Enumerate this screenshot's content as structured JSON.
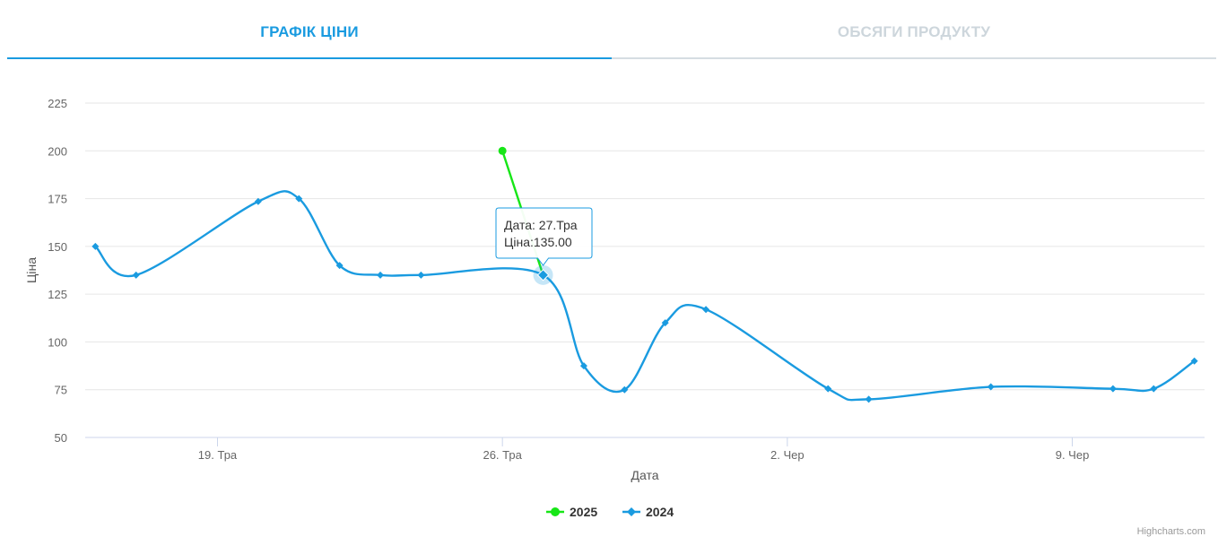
{
  "tabs": {
    "price_chart": "ГРАФІК ЦІНИ",
    "product_volumes": "ОБСЯГИ ПРОДУКТУ"
  },
  "colors": {
    "accent": "#1a9be0",
    "series_2025": "#17e617",
    "series_2024": "#1a9be0",
    "tab_inactive": "#cdd6dc"
  },
  "chart_data": {
    "type": "line",
    "xlabel": "Дата",
    "ylabel": "Ціна",
    "ylim": [
      50,
      225
    ],
    "yticks": [
      "50",
      "75",
      "100",
      "125",
      "150",
      "175",
      "200",
      "225"
    ],
    "xticks": [
      "19. Тра",
      "26. Тра",
      "2. Чер",
      "9. Чер"
    ],
    "xtick_days": [
      19,
      26,
      33,
      40
    ],
    "xlim_days": [
      15.75,
      43.25
    ],
    "legend_position": "bottom-center",
    "grid": true,
    "series": [
      {
        "name": "2025",
        "marker": "circle",
        "points": [
          {
            "day": 26,
            "value": 200
          },
          {
            "day": 27,
            "value": 135
          }
        ]
      },
      {
        "name": "2024",
        "marker": "diamond",
        "points": [
          {
            "day": 16,
            "value": 150
          },
          {
            "day": 17,
            "value": 135
          },
          {
            "day": 20,
            "value": 173.5
          },
          {
            "day": 21,
            "value": 175
          },
          {
            "day": 22,
            "value": 140
          },
          {
            "day": 23,
            "value": 135
          },
          {
            "day": 24,
            "value": 135
          },
          {
            "day": 27,
            "value": 135
          },
          {
            "day": 28,
            "value": 87.5
          },
          {
            "day": 29,
            "value": 75
          },
          {
            "day": 30,
            "value": 110
          },
          {
            "day": 31,
            "value": 117
          },
          {
            "day": 34,
            "value": 75.5
          },
          {
            "day": 35,
            "value": 70
          },
          {
            "day": 38,
            "value": 76.5
          },
          {
            "day": 41,
            "value": 75.5
          },
          {
            "day": 42,
            "value": 75.5
          },
          {
            "day": 43,
            "value": 90
          }
        ]
      }
    ],
    "tooltip": {
      "line1": "Дата: 27.Тра",
      "line2": "Ціна:135.00"
    }
  },
  "credits": "Highcharts.com"
}
